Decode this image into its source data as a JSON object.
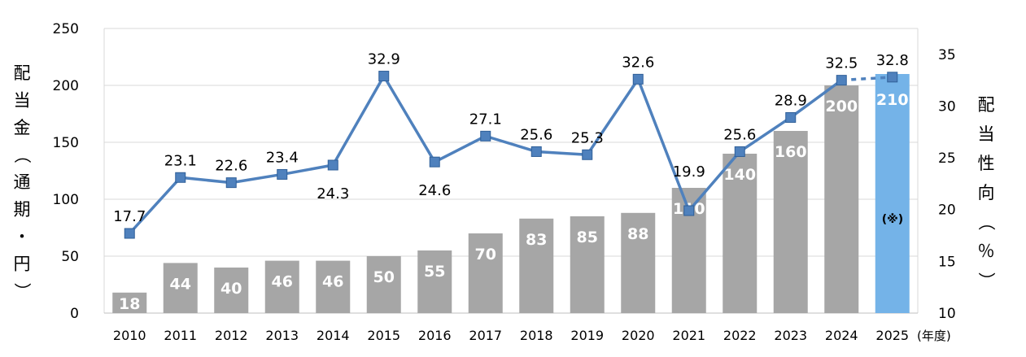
{
  "chart_data": {
    "type": "bar+line",
    "categories": [
      "2010",
      "2011",
      "2012",
      "2013",
      "2014",
      "2015",
      "2016",
      "2017",
      "2018",
      "2019",
      "2020",
      "2021",
      "2022",
      "2023",
      "2024",
      "2025"
    ],
    "x_unit": "(年度)",
    "bars": {
      "values": [
        18,
        44,
        40,
        46,
        46,
        50,
        55,
        70,
        83,
        85,
        88,
        110,
        140,
        160,
        200,
        210
      ],
      "labels": [
        "18",
        "44",
        "40",
        "46",
        "46",
        "50",
        "55",
        "70",
        "83",
        "85",
        "88",
        "110",
        "140",
        "160",
        "200",
        "210"
      ],
      "color": "#a6a6a6",
      "highlight_color": "#74b3e8",
      "highlight_index": 15,
      "highlight_note": "(※)"
    },
    "line": {
      "values": [
        17.7,
        23.1,
        22.6,
        23.4,
        24.3,
        32.9,
        24.6,
        27.1,
        25.6,
        25.3,
        32.6,
        19.9,
        25.6,
        28.9,
        32.5,
        32.8
      ],
      "labels": [
        "17.7",
        "23.1",
        "22.6",
        "23.4",
        "24.3",
        "32.9",
        "24.6",
        "27.1",
        "25.6",
        "25.3",
        "32.6",
        "19.9",
        "25.6",
        "28.9",
        "32.5",
        "32.8"
      ],
      "color": "#4f81bd",
      "dashed_last_segment": true
    },
    "y_left": {
      "label": "配当金（通期・円）",
      "range": [
        0,
        250
      ],
      "ticks": [
        "0",
        "50",
        "100",
        "150",
        "200",
        "250"
      ]
    },
    "y_right": {
      "label": "配当性向（％）",
      "range": [
        10,
        37.5
      ],
      "ticks": [
        "10",
        "15",
        "20",
        "25",
        "30",
        "35"
      ]
    },
    "grid": true
  }
}
